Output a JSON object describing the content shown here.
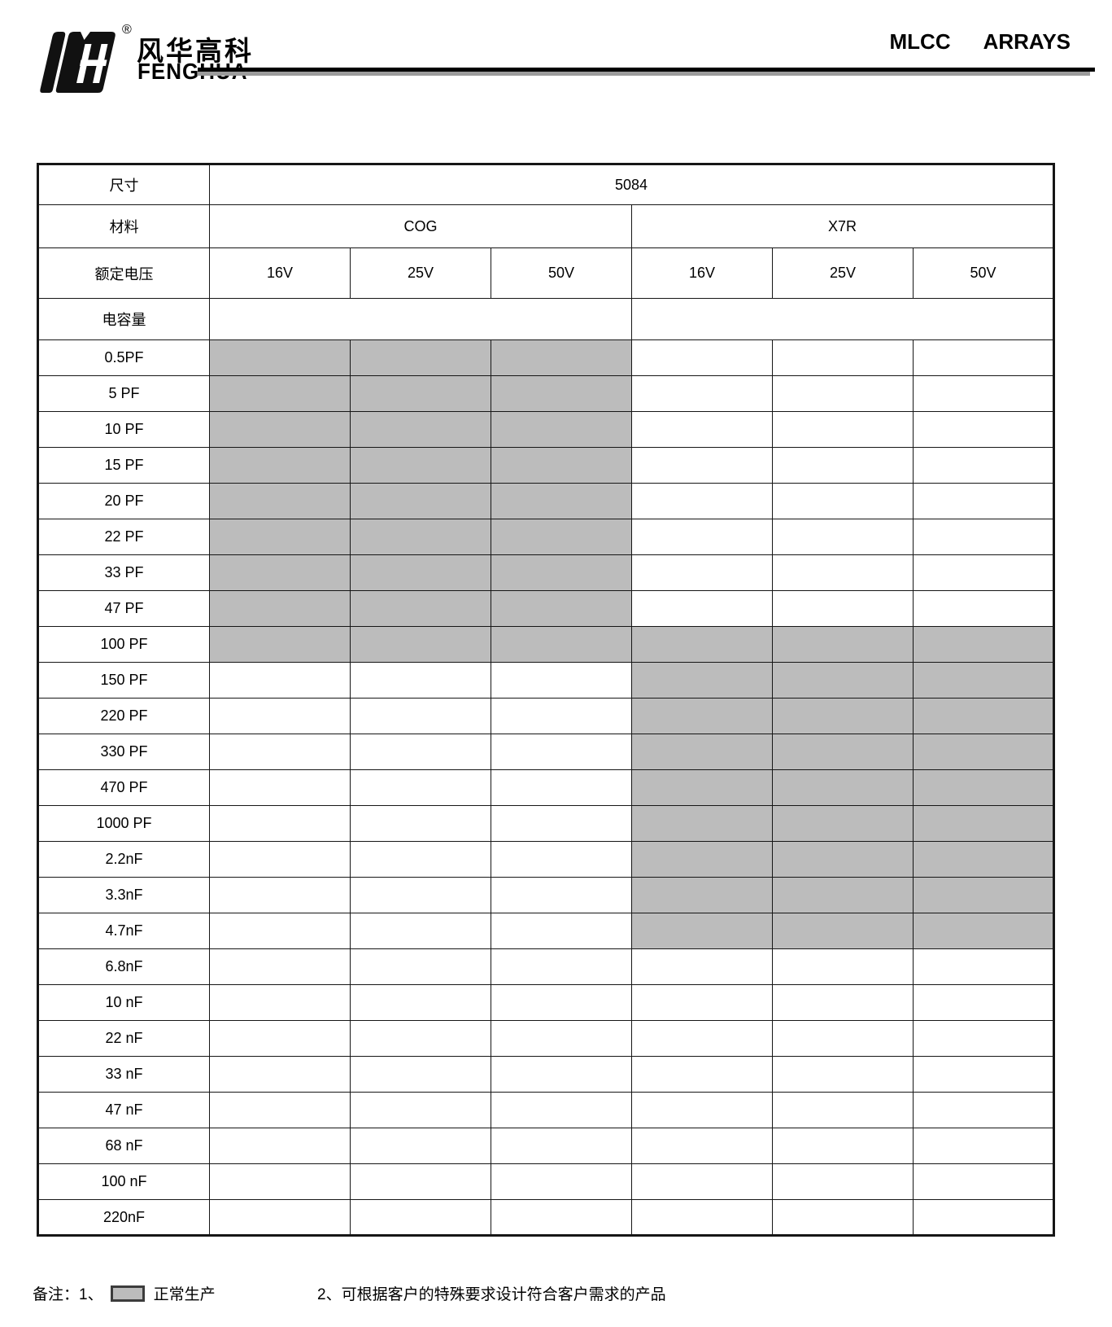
{
  "header": {
    "brand_chinese": "风华高科",
    "brand_english": "FENGHUA",
    "registered_mark": "®",
    "title_word1": "MLCC",
    "title_word2": "ARRAYS"
  },
  "table": {
    "size_label": "尺寸",
    "size_value": "5084",
    "material_label": "材料",
    "materials": [
      "COG",
      "X7R"
    ],
    "voltage_label": "额定电压",
    "voltages": [
      "16V",
      "25V",
      "50V",
      "16V",
      "25V",
      "50V"
    ],
    "capacitance_label": "电容量",
    "rows": [
      {
        "label": "0.5PF",
        "cells": [
          1,
          1,
          1,
          0,
          0,
          0
        ]
      },
      {
        "label": "5 PF",
        "cells": [
          1,
          1,
          1,
          0,
          0,
          0
        ]
      },
      {
        "label": "10 PF",
        "cells": [
          1,
          1,
          1,
          0,
          0,
          0
        ]
      },
      {
        "label": "15 PF",
        "cells": [
          1,
          1,
          1,
          0,
          0,
          0
        ]
      },
      {
        "label": "20 PF",
        "cells": [
          1,
          1,
          1,
          0,
          0,
          0
        ]
      },
      {
        "label": "22 PF",
        "cells": [
          1,
          1,
          1,
          0,
          0,
          0
        ]
      },
      {
        "label": "33 PF",
        "cells": [
          1,
          1,
          1,
          0,
          0,
          0
        ]
      },
      {
        "label": "47 PF",
        "cells": [
          1,
          1,
          1,
          0,
          0,
          0
        ]
      },
      {
        "label": "100 PF",
        "cells": [
          1,
          1,
          1,
          1,
          1,
          1
        ]
      },
      {
        "label": "150 PF",
        "cells": [
          0,
          0,
          0,
          1,
          1,
          1
        ]
      },
      {
        "label": "220 PF",
        "cells": [
          0,
          0,
          0,
          1,
          1,
          1
        ]
      },
      {
        "label": "330 PF",
        "cells": [
          0,
          0,
          0,
          1,
          1,
          1
        ]
      },
      {
        "label": "470 PF",
        "cells": [
          0,
          0,
          0,
          1,
          1,
          1
        ]
      },
      {
        "label": "1000 PF",
        "cells": [
          0,
          0,
          0,
          1,
          1,
          1
        ]
      },
      {
        "label": "2.2nF",
        "cells": [
          0,
          0,
          0,
          1,
          1,
          1
        ]
      },
      {
        "label": "3.3nF",
        "cells": [
          0,
          0,
          0,
          1,
          1,
          1
        ]
      },
      {
        "label": "4.7nF",
        "cells": [
          0,
          0,
          0,
          1,
          1,
          1
        ]
      },
      {
        "label": "6.8nF",
        "cells": [
          0,
          0,
          0,
          0,
          0,
          0
        ]
      },
      {
        "label": "10 nF",
        "cells": [
          0,
          0,
          0,
          0,
          0,
          0
        ]
      },
      {
        "label": "22 nF",
        "cells": [
          0,
          0,
          0,
          0,
          0,
          0
        ]
      },
      {
        "label": "33 nF",
        "cells": [
          0,
          0,
          0,
          0,
          0,
          0
        ]
      },
      {
        "label": "47 nF",
        "cells": [
          0,
          0,
          0,
          0,
          0,
          0
        ]
      },
      {
        "label": "68 nF",
        "cells": [
          0,
          0,
          0,
          0,
          0,
          0
        ]
      },
      {
        "label": "100 nF",
        "cells": [
          0,
          0,
          0,
          0,
          0,
          0
        ]
      },
      {
        "label": "220nF",
        "cells": [
          0,
          0,
          0,
          0,
          0,
          0
        ]
      }
    ],
    "legend_produced_meaning": "正常生产"
  },
  "footer": {
    "notes_label": "备注：1、",
    "note1_text": "正常生产",
    "note2": "2、可根据客户的特殊要求设计符合客户需求的产品"
  },
  "colors": {
    "produced_fill": "#bcbcbc",
    "table_line": "#161616",
    "rule_black": "#000000",
    "rule_gray": "#9b9b9b"
  }
}
